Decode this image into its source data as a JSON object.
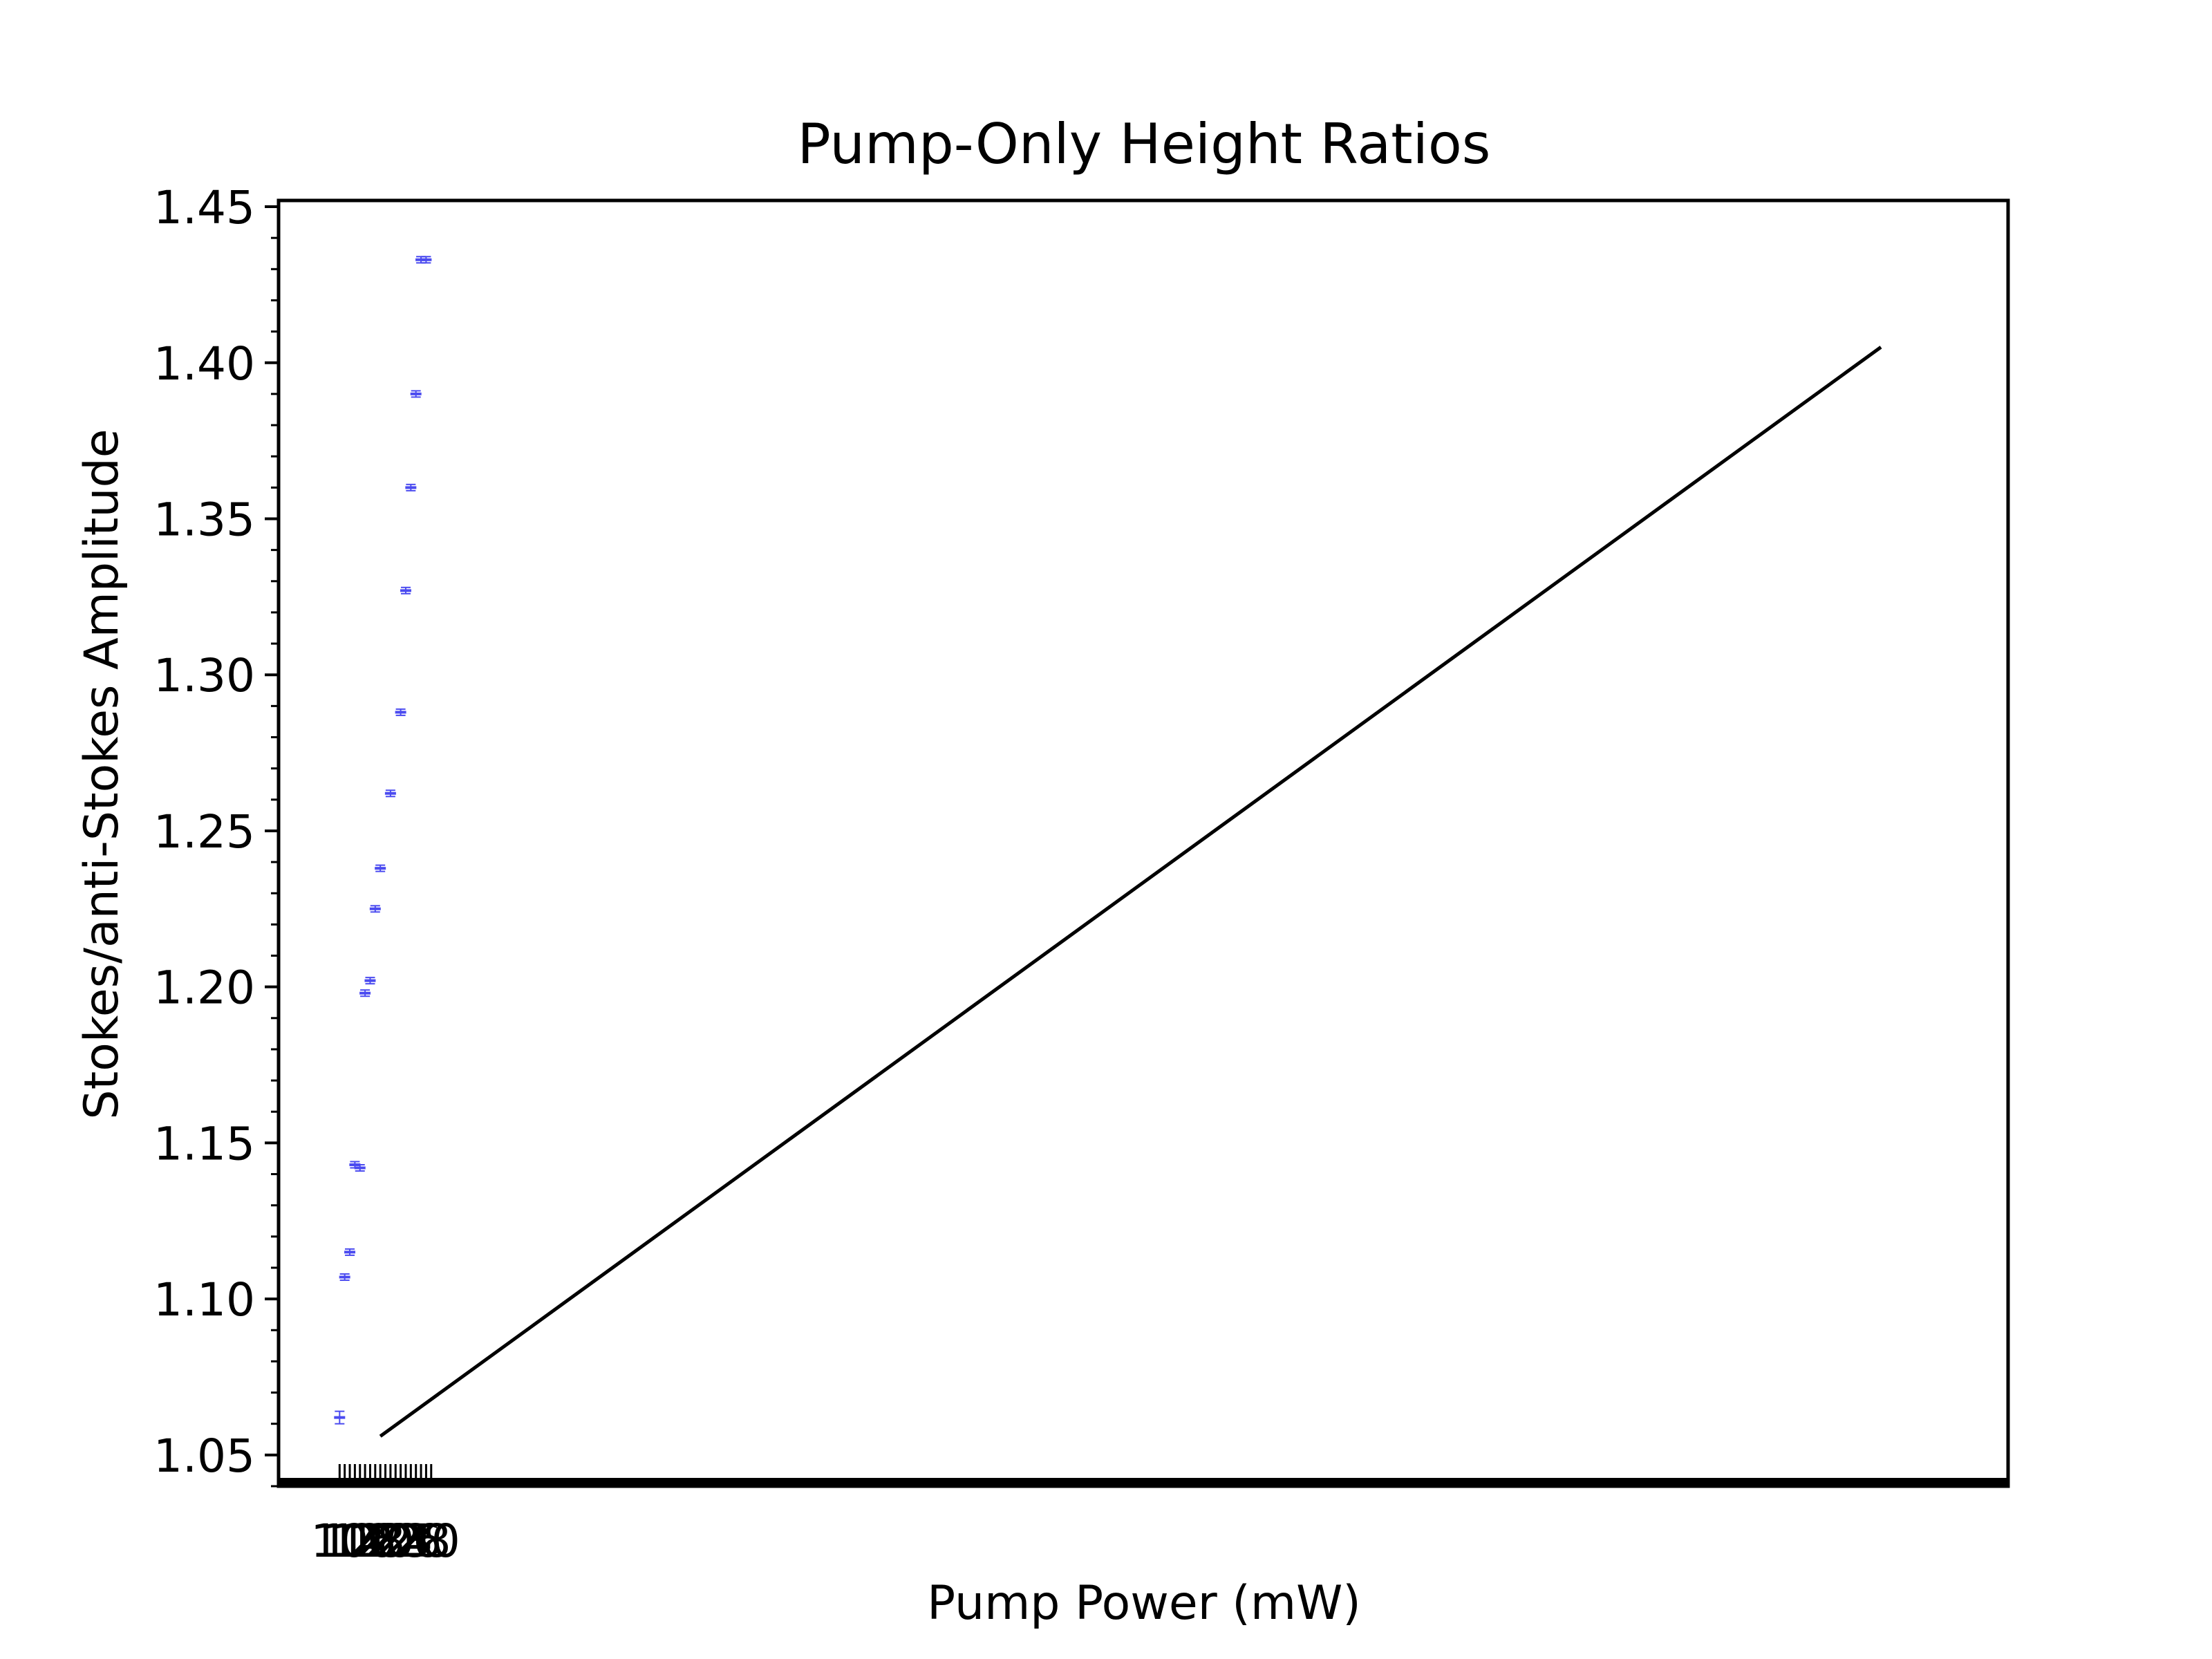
{
  "chart_data": {
    "type": "scatter",
    "title": "Pump-Only Height Ratios",
    "xlabel": "Pump Power (mW)",
    "ylabel": "Stokes/anti-Stokes Amplitude",
    "xlim": [
      0,
      340
    ],
    "ylim": [
      1.04,
      1.452
    ],
    "yticks": [
      1.05,
      1.1,
      1.15,
      1.2,
      1.25,
      1.3,
      1.35,
      1.4,
      1.45
    ],
    "ytick_labels": [
      "1.05",
      "1.10",
      "1.15",
      "1.20",
      "1.25",
      "1.30",
      "1.35",
      "1.40",
      "1.45"
    ],
    "grid": false,
    "series": [
      {
        "kind": "errorbar-points",
        "color": "#4b4bf0",
        "x": [
          12,
          13,
          14,
          15,
          16,
          17,
          18,
          19,
          20,
          22,
          24,
          25,
          26,
          27,
          28,
          29
        ],
        "y": [
          1.062,
          1.107,
          1.115,
          1.143,
          1.142,
          1.198,
          1.202,
          1.225,
          1.238,
          1.262,
          1.288,
          1.327,
          1.36,
          1.39,
          1.433,
          1.433
        ],
        "yerr": [
          0.002,
          0.001,
          0.001,
          0.001,
          0.001,
          0.001,
          0.001,
          0.001,
          0.001,
          0.001,
          0.001,
          0.001,
          0.001,
          0.001,
          0.001,
          0.001
        ]
      },
      {
        "kind": "fit-line",
        "color": "#000000",
        "x": [
          20,
          315
        ],
        "y": [
          1.056,
          1.405
        ]
      }
    ],
    "xticks_note": "crowded overlapping x tick labels near 10-30 mW"
  }
}
